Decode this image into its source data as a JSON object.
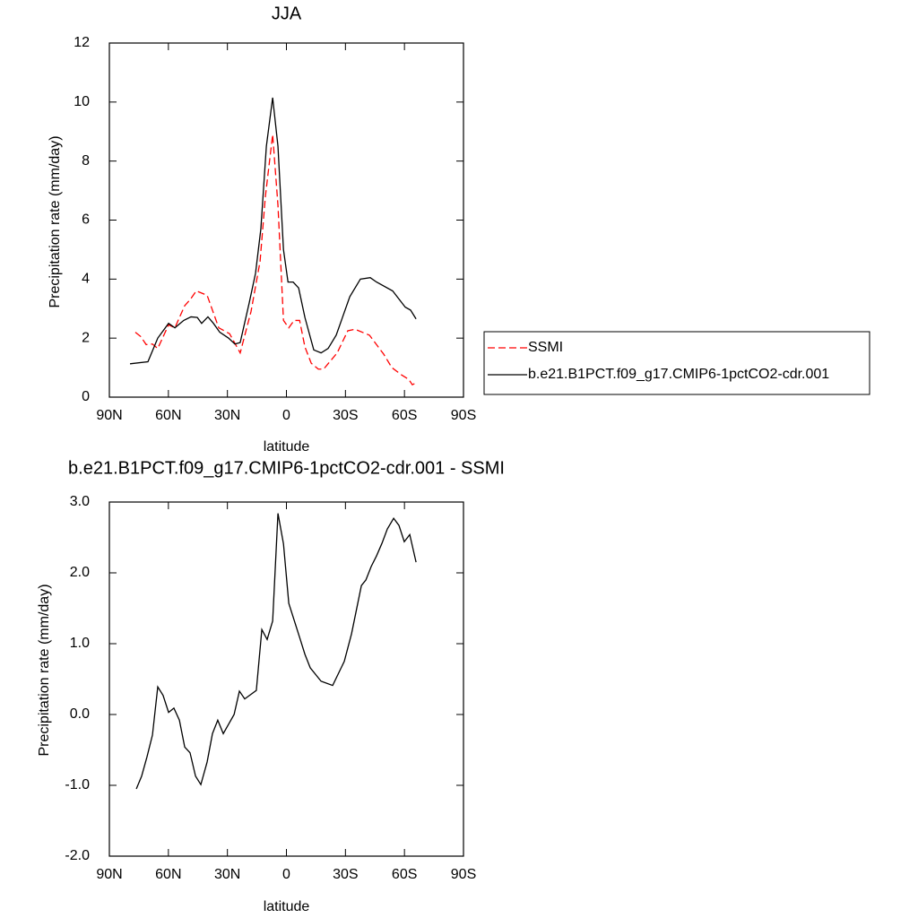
{
  "chart_data": [
    {
      "type": "line",
      "title": "JJA",
      "x_label": "latitude",
      "y_label": "Precipitation rate (mm/day)",
      "xlim": [
        90,
        -90
      ],
      "xticks": [
        {
          "value": 90,
          "label": "90N"
        },
        {
          "value": 60,
          "label": "60N"
        },
        {
          "value": 30,
          "label": "30N"
        },
        0,
        {
          "value": -30,
          "label": "30S"
        },
        {
          "value": -60,
          "label": "60S"
        },
        {
          "value": -90,
          "label": "90S"
        }
      ],
      "ylim": [
        0,
        12
      ],
      "yticks": [
        0,
        2,
        4,
        6,
        8,
        10,
        12
      ],
      "legend": "right",
      "series": [
        {
          "name": "SSMI",
          "color": "#ff0000",
          "dash": true,
          "x": [
            76.8,
            74.0,
            71.3,
            68.1,
            65.4,
            59.9,
            56.7,
            51.7,
            49.0,
            45.8,
            40.3,
            34.4,
            28.9,
            23.5,
            18.0,
            13.4,
            10.7,
            7.0,
            4.3,
            1.5,
            -1.2,
            -3.9,
            -6.7,
            -9.4,
            -12.6,
            -16.2,
            -18.9,
            -25.8,
            -31.2,
            -34.9,
            -42.2,
            -49.5,
            -53.6,
            -58.6,
            -62.2,
            -64.0,
            -66.3
          ],
          "values": [
            2.2,
            2.05,
            1.78,
            1.8,
            1.65,
            2.45,
            2.35,
            3.1,
            3.3,
            3.6,
            3.45,
            2.35,
            2.15,
            1.5,
            2.9,
            4.6,
            6.8,
            8.9,
            6.5,
            2.6,
            2.35,
            2.6,
            2.6,
            1.7,
            1.15,
            0.95,
            0.95,
            1.5,
            2.25,
            2.3,
            2.1,
            1.45,
            1.0,
            0.75,
            0.6,
            0.42,
            0.5
          ]
        },
        {
          "name": "b.e21.B1PCT.f09_g17.CMIP6-1pctCO2-cdr.001",
          "color": "#000000",
          "dash": false,
          "x": [
            79.5,
            70.4,
            65.4,
            59.9,
            56.7,
            52.2,
            48.5,
            45.3,
            43.1,
            39.9,
            37.1,
            33.9,
            29.4,
            26.2,
            23.5,
            18.9,
            15.7,
            13.0,
            10.2,
            7.0,
            4.3,
            1.5,
            -0.8,
            -3.4,
            -6.2,
            -9.4,
            -13.9,
            -17.6,
            -21.2,
            -25.3,
            -32.2,
            -37.6,
            -42.6,
            -45.8,
            -54.0,
            -60.4,
            -63.1,
            -65.9
          ],
          "values": [
            1.13,
            1.2,
            2.0,
            2.5,
            2.35,
            2.6,
            2.72,
            2.7,
            2.5,
            2.72,
            2.5,
            2.2,
            2.0,
            1.8,
            1.85,
            3.2,
            4.2,
            5.7,
            8.5,
            10.15,
            8.5,
            5.0,
            3.9,
            3.9,
            3.7,
            2.7,
            1.6,
            1.5,
            1.65,
            2.1,
            3.4,
            4.0,
            4.05,
            3.9,
            3.6,
            3.05,
            2.95,
            2.65
          ]
        }
      ]
    },
    {
      "type": "line",
      "title": "b.e21.B1PCT.f09_g17.CMIP6-1pctCO2-cdr.001 - SSMI",
      "x_label": "latitude",
      "y_label": "Precipitation rate (mm/day)",
      "xlim": [
        90,
        -90
      ],
      "xticks": [
        {
          "value": 90,
          "label": "90N"
        },
        {
          "value": 60,
          "label": "60N"
        },
        {
          "value": 30,
          "label": "30N"
        },
        0,
        {
          "value": -30,
          "label": "30S"
        },
        {
          "value": -60,
          "label": "60S"
        },
        {
          "value": -90,
          "label": "90S"
        }
      ],
      "ylim": [
        -2,
        3
      ],
      "yticks": [
        {
          "value": -2,
          "label": "-2.0"
        },
        {
          "value": -1,
          "label": "-1.0"
        },
        {
          "value": 0,
          "label": "0.0"
        },
        {
          "value": 1,
          "label": "1.0"
        },
        {
          "value": 2,
          "label": "2.0"
        },
        {
          "value": 3,
          "label": "3.0"
        }
      ],
      "series": [
        {
          "color": "#000000",
          "dash": false,
          "x": [
            76.3,
            73.6,
            70.9,
            68.1,
            65.4,
            62.7,
            59.9,
            57.2,
            54.4,
            51.7,
            49.0,
            46.2,
            43.5,
            40.3,
            37.6,
            34.9,
            32.1,
            26.6,
            23.9,
            21.2,
            15.3,
            12.5,
            9.8,
            7.0,
            4.3,
            1.5,
            -1.2,
            -6.7,
            -9.4,
            -12.1,
            -17.6,
            -23.5,
            -29.4,
            -33.1,
            -38.1,
            -40.4,
            -43.1,
            -45.8,
            -48.6,
            -51.3,
            -54.5,
            -57.2,
            -59.9,
            -62.7,
            -65.9
          ],
          "values": [
            -1.05,
            -0.87,
            -0.6,
            -0.29,
            0.39,
            0.27,
            0.03,
            0.09,
            -0.08,
            -0.46,
            -0.54,
            -0.87,
            -0.99,
            -0.67,
            -0.27,
            -0.08,
            -0.27,
            0.0,
            0.33,
            0.22,
            0.34,
            1.2,
            1.06,
            1.32,
            2.84,
            2.41,
            1.57,
            1.09,
            0.85,
            0.66,
            0.47,
            0.41,
            0.75,
            1.14,
            1.82,
            1.9,
            2.09,
            2.24,
            2.42,
            2.62,
            2.77,
            2.67,
            2.44,
            2.54,
            2.15
          ]
        }
      ]
    }
  ]
}
